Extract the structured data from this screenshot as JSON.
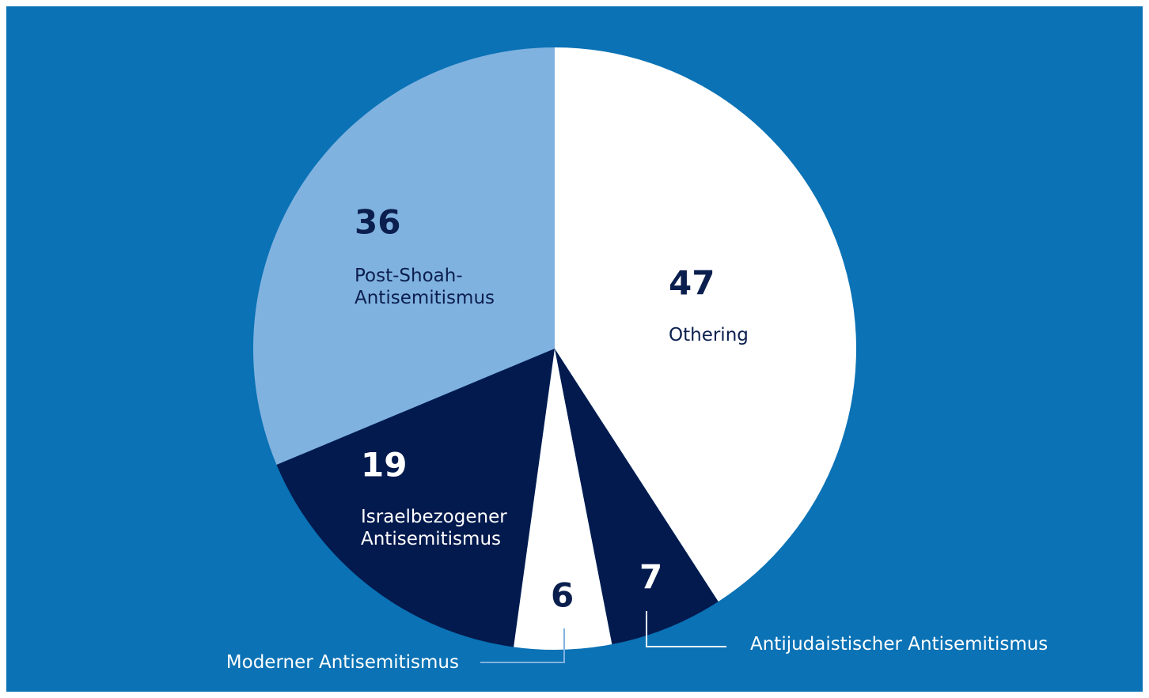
{
  "chart_data": {
    "type": "pie",
    "categories": [
      "Othering",
      "Antijudaistischer Antisemitismus",
      "Moderner Antisemitismus",
      "Israelbezogener Antisemitismus",
      "Post-Shoah-Antisemitismus"
    ],
    "values": [
      47,
      7,
      6,
      19,
      36
    ],
    "colors": [
      "#ffffff",
      "#031a4e",
      "#ffffff",
      "#031a4e",
      "#80b2e0"
    ]
  }
}
